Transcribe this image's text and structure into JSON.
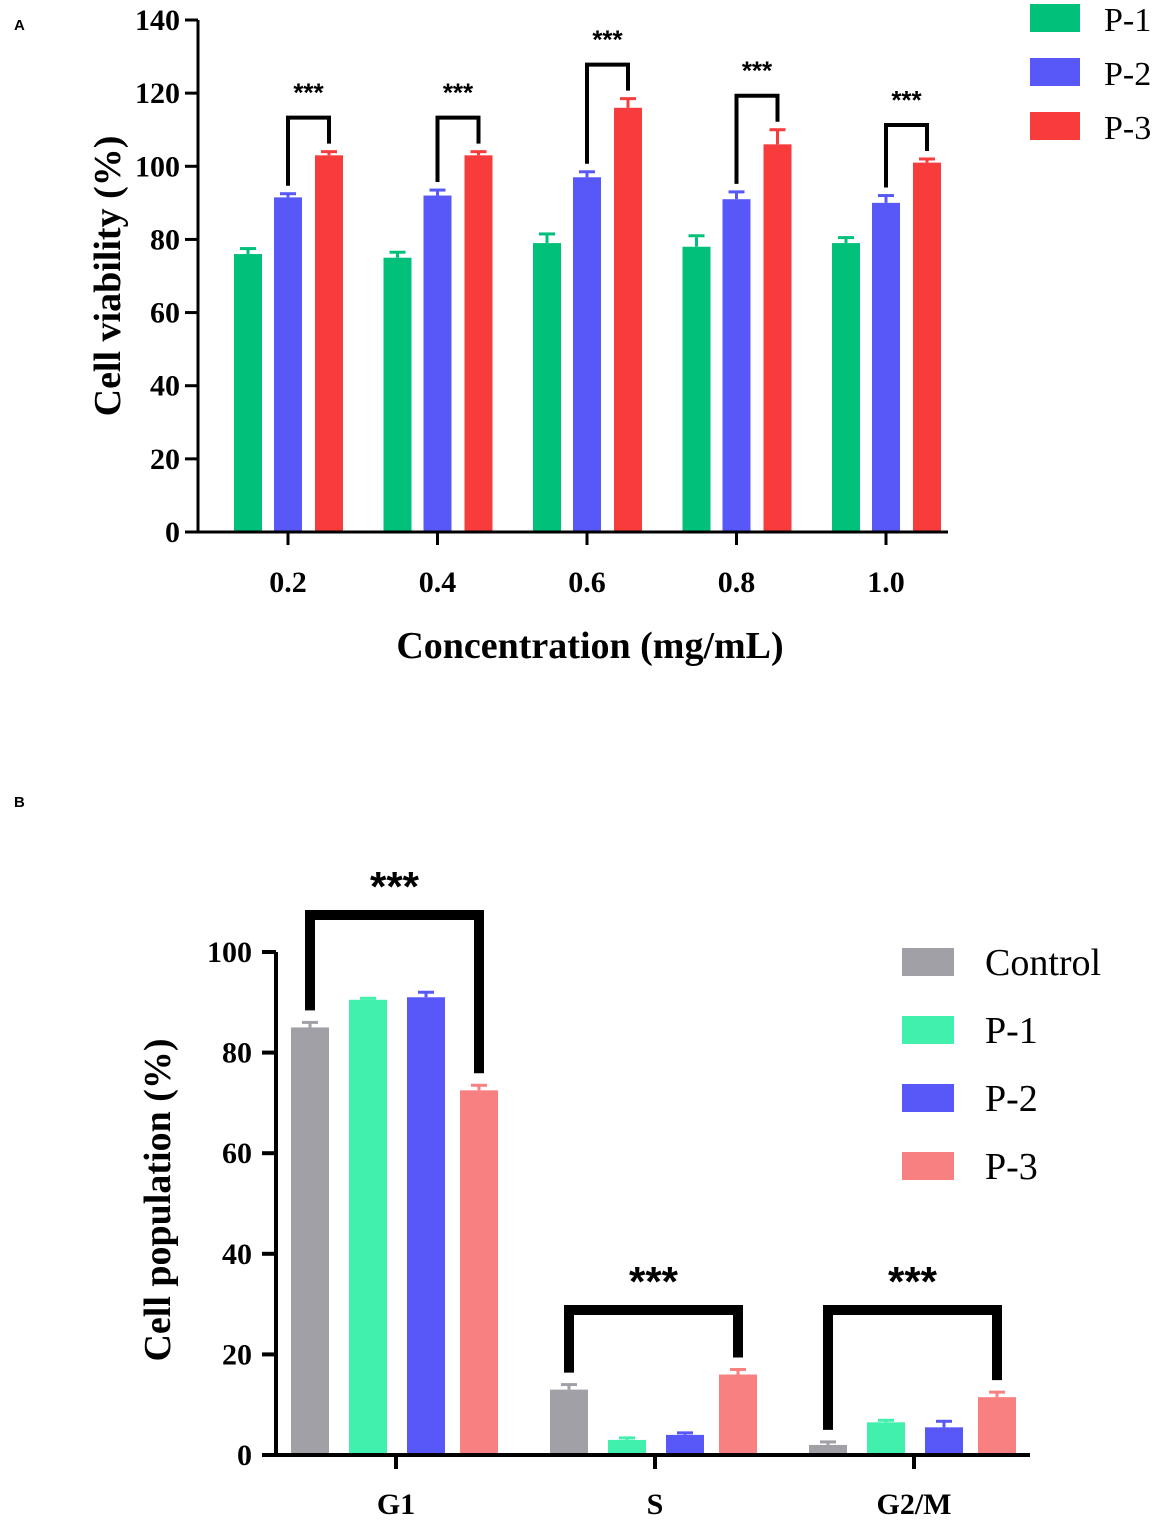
{
  "chart_data": [
    {
      "panel": "A",
      "type": "bar",
      "categories": [
        "0.2",
        "0.4",
        "0.6",
        "0.8",
        "1.0"
      ],
      "series": [
        {
          "name": "P-1",
          "color": "#00c07a",
          "values": [
            76,
            75,
            79,
            78,
            79
          ],
          "errors": [
            1.5,
            1.5,
            2.5,
            3,
            1.5
          ]
        },
        {
          "name": "P-2",
          "color": "#5858f8",
          "values": [
            91.5,
            92,
            97,
            91,
            90
          ],
          "errors": [
            1,
            1.5,
            1.5,
            2,
            2
          ]
        },
        {
          "name": "P-3",
          "color": "#f83c3c",
          "values": [
            103,
            103,
            116,
            106,
            101
          ],
          "errors": [
            1,
            1,
            2.5,
            4,
            1
          ]
        }
      ],
      "significance": [
        "***",
        "***",
        "***",
        "***",
        "***"
      ],
      "xlabel": "Concentration (mg/mL)",
      "ylabel": "Cell viability (%)",
      "ylim": [
        0,
        140
      ],
      "yticks": [
        "0",
        "20",
        "40",
        "60",
        "80",
        "100",
        "120",
        "140"
      ],
      "legend_position": "top-right"
    },
    {
      "panel": "B",
      "type": "bar",
      "categories": [
        "G1",
        "S",
        "G2/M"
      ],
      "series": [
        {
          "name": "Control",
          "color": "#a0a0a6",
          "values": [
            85,
            13,
            2
          ],
          "errors": [
            1,
            1,
            0.6
          ]
        },
        {
          "name": "P-1",
          "color": "#40f0ac",
          "values": [
            90.5,
            3,
            6.5
          ],
          "errors": [
            0.3,
            0.4,
            0.4
          ]
        },
        {
          "name": "P-2",
          "color": "#5858f8",
          "values": [
            91,
            4,
            5.5
          ],
          "errors": [
            1,
            0.4,
            1.2
          ]
        },
        {
          "name": "P-3",
          "color": "#f88080",
          "values": [
            72.5,
            16,
            11.5
          ],
          "errors": [
            1,
            1,
            1
          ]
        }
      ],
      "significance": [
        "***",
        "***",
        "***"
      ],
      "xlabel": "",
      "ylabel": "Cell population (%)",
      "ylim": [
        0,
        100
      ],
      "yticks": [
        "0",
        "20",
        "40",
        "60",
        "80",
        "100"
      ],
      "legend_position": "right"
    }
  ]
}
